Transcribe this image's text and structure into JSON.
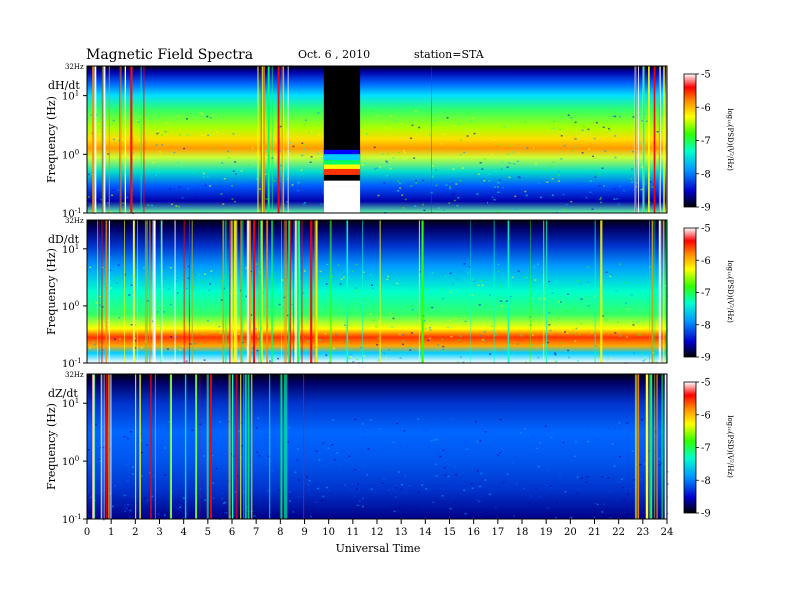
{
  "header": {
    "title": "Magnetic  Field  Spectra",
    "date": "Oct. 6  , 2010",
    "station": "station=STA"
  },
  "chart_data": {
    "type": "heatmap",
    "xlabel": "Universal Time",
    "x_ticks": [
      "0",
      "1",
      "2",
      "3",
      "4",
      "5",
      "6",
      "7",
      "8",
      "9",
      "10",
      "11",
      "12",
      "13",
      "14",
      "15",
      "16",
      "17",
      "18",
      "19",
      "20",
      "21",
      "22",
      "23",
      "24"
    ],
    "xlim": [
      0,
      24
    ],
    "ylabel": "Frequency  (Hz)",
    "y_top_label": "32Hz",
    "y_ticks": [
      {
        "value": 10,
        "base": "10",
        "exp": "1"
      },
      {
        "value": 1,
        "base": "10",
        "exp": "0"
      },
      {
        "value": 0.1,
        "base": "10",
        "exp": "-1"
      }
    ],
    "y_scale": "log",
    "colorbar": {
      "label": "log₁₀(PSD)(V²/Hz)",
      "ticks": [
        "-5",
        "-6",
        "-7",
        "-8",
        "-9"
      ],
      "range": [
        -9,
        -5
      ],
      "colors": [
        "#000000",
        "#0000cc",
        "#0099ff",
        "#00ffcc",
        "#33ff00",
        "#ffff00",
        "#ff8800",
        "#ff0000",
        "#ffffff"
      ]
    },
    "panels": [
      {
        "component": "dH/dt"
      },
      {
        "component": "dD/dt"
      },
      {
        "component": "dZ/dt"
      }
    ]
  }
}
